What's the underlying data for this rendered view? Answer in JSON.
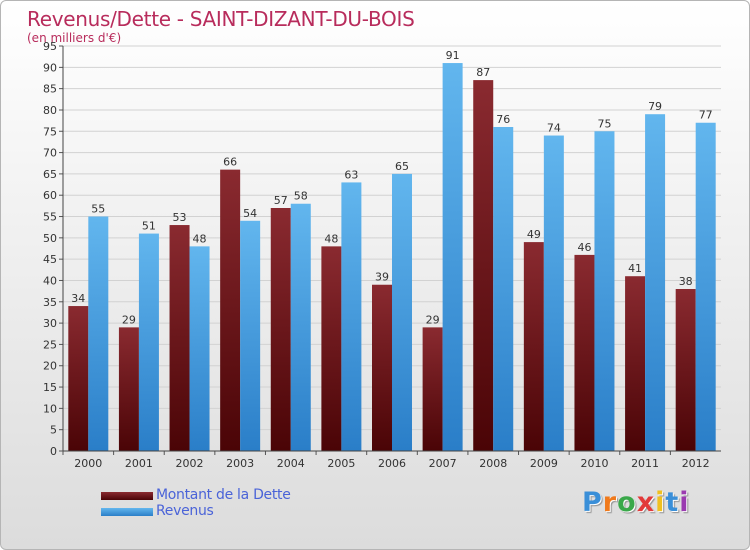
{
  "title": "Revenus/Dette - SAINT-DIZANT-DU-BOIS",
  "subtitle": "(en milliers d'€)",
  "legend": {
    "debt_label": "Montant de la Dette",
    "revenue_label": "Revenus"
  },
  "logo": {
    "letters": [
      "P",
      "r",
      "o",
      "x",
      "i",
      "t",
      "i"
    ],
    "colors": [
      "#3a8fd8",
      "#f07a1c",
      "#3aa84a",
      "#e23a3a",
      "#f0c020",
      "#3a8fd8",
      "#9a3ab0"
    ]
  },
  "colors": {
    "debt": "#7a1c22",
    "debt_dark": "#4a0406",
    "revenue": "#5aaee8",
    "revenue_dark": "#2a7ec8",
    "title": "#b82c5c"
  },
  "chart_data": {
    "type": "bar",
    "title": "Revenus/Dette - SAINT-DIZANT-DU-BOIS",
    "subtitle": "(en milliers d'€)",
    "categories": [
      "2000",
      "2001",
      "2002",
      "2003",
      "2004",
      "2005",
      "2006",
      "2007",
      "2008",
      "2009",
      "2010",
      "2011",
      "2012"
    ],
    "series": [
      {
        "name": "Montant de la Dette",
        "values": [
          34,
          29,
          53,
          66,
          57,
          48,
          39,
          29,
          87,
          49,
          46,
          41,
          38
        ]
      },
      {
        "name": "Revenus",
        "values": [
          55,
          51,
          48,
          54,
          58,
          63,
          65,
          91,
          76,
          74,
          75,
          79,
          77
        ]
      }
    ],
    "ylim": [
      0,
      95
    ],
    "ytick_step": 5,
    "grid": true,
    "legend_position": "bottom-left"
  }
}
